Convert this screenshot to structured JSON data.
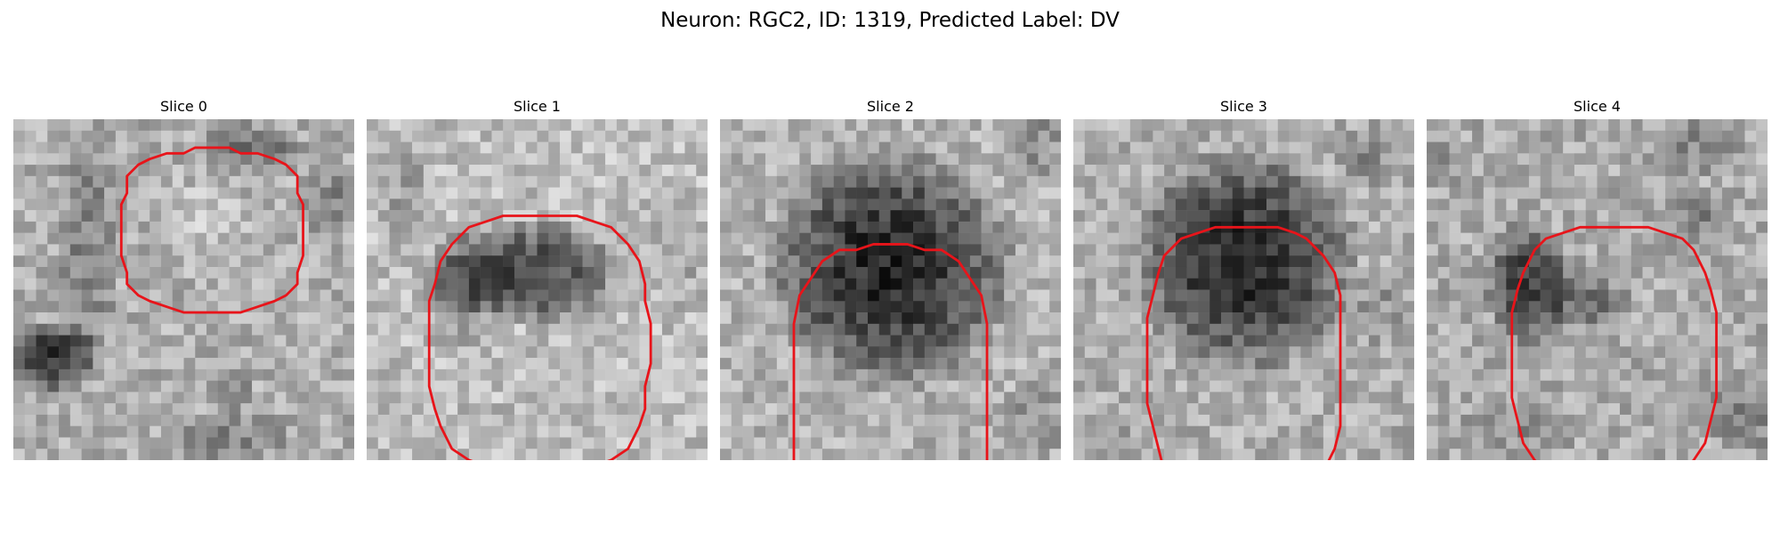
{
  "figure": {
    "title": "Neuron: RGC2, ID: 1319, Predicted Label: DV"
  },
  "colors": {
    "contour": "#e8141a",
    "background": "#ffffff"
  },
  "slices": [
    {
      "label": "Slice 0"
    },
    {
      "label": "Slice 1"
    },
    {
      "label": "Slice 2"
    },
    {
      "label": "Slice 3"
    },
    {
      "label": "Slice 4"
    }
  ]
}
